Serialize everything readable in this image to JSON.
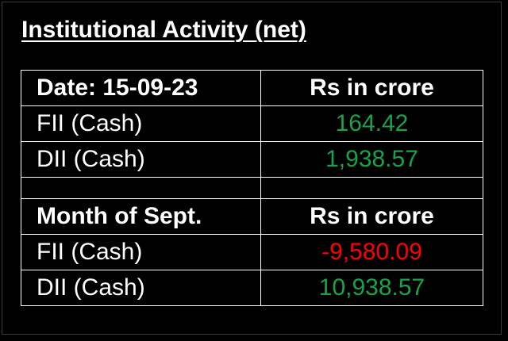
{
  "title": "Institutional Activity (net)",
  "daily": {
    "header_label": "Date: 15-09-23",
    "header_unit": "Rs in crore",
    "rows": [
      {
        "label": "FII (Cash)",
        "value": "164.42",
        "color": "#18a24a"
      },
      {
        "label": "DII (Cash)",
        "value": "1,938.57",
        "color": "#18a24a"
      }
    ]
  },
  "monthly": {
    "header_label": "Month of Sept.",
    "header_unit": "Rs in crore",
    "rows": [
      {
        "label": "FII (Cash)",
        "value": "-9,580.09",
        "color": "#ff0000"
      },
      {
        "label": "DII (Cash)",
        "value": "10,938.57",
        "color": "#18a24a"
      }
    ]
  }
}
